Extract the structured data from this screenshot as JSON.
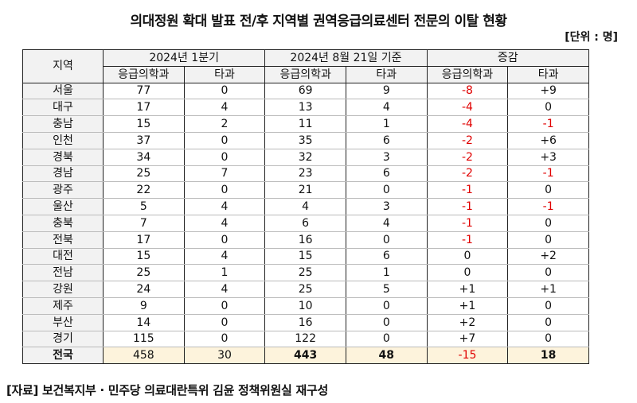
{
  "title": "의대정원 확대 발표 전/후 지역별 권역응급의료센터 전문의 이탈 현황",
  "unit": "[단위 : 명]",
  "header": {
    "region": "지역",
    "groups": [
      "2024년 1분기",
      "2024년 8월 21일 기준",
      "증감"
    ],
    "sub": [
      "응급의학과",
      "타과",
      "응급의학과",
      "타과",
      "응급의학과",
      "타과"
    ]
  },
  "rows": [
    [
      "서울",
      "77",
      "0",
      "69",
      "9",
      "-8",
      "+9"
    ],
    [
      "대구",
      "17",
      "4",
      "13",
      "4",
      "-4",
      "0"
    ],
    [
      "충남",
      "15",
      "2",
      "11",
      "1",
      "-4",
      "-1"
    ],
    [
      "인천",
      "37",
      "0",
      "35",
      "6",
      "-2",
      "+6"
    ],
    [
      "경북",
      "34",
      "0",
      "32",
      "3",
      "-2",
      "+3"
    ],
    [
      "경남",
      "25",
      "7",
      "23",
      "6",
      "-2",
      "-1"
    ],
    [
      "광주",
      "22",
      "0",
      "21",
      "0",
      "-1",
      "0"
    ],
    [
      "울산",
      "5",
      "4",
      "4",
      "3",
      "-1",
      "-1"
    ],
    [
      "충북",
      "7",
      "4",
      "6",
      "4",
      "-1",
      "0"
    ],
    [
      "전북",
      "17",
      "0",
      "16",
      "0",
      "-1",
      "0"
    ],
    [
      "대전",
      "15",
      "4",
      "15",
      "6",
      "0",
      "+2"
    ],
    [
      "전남",
      "25",
      "1",
      "25",
      "1",
      "0",
      "0"
    ],
    [
      "강원",
      "24",
      "4",
      "25",
      "5",
      "+1",
      "+1"
    ],
    [
      "제주",
      "9",
      "0",
      "10",
      "0",
      "+1",
      "0"
    ],
    [
      "부산",
      "14",
      "0",
      "16",
      "0",
      "+2",
      "0"
    ],
    [
      "경기",
      "115",
      "0",
      "122",
      "0",
      "+7",
      "0"
    ]
  ],
  "total": [
    "전국",
    "458",
    "30",
    "443",
    "48",
    "-15",
    "18"
  ],
  "source": "[자료] 보건복지부 · 민주당 의료대란특위 김윤 정책위원실 재구성",
  "colors": {
    "negative": "#e00000",
    "total_bg": "#fdf3dc",
    "header_bg": "#f2f2f2"
  }
}
